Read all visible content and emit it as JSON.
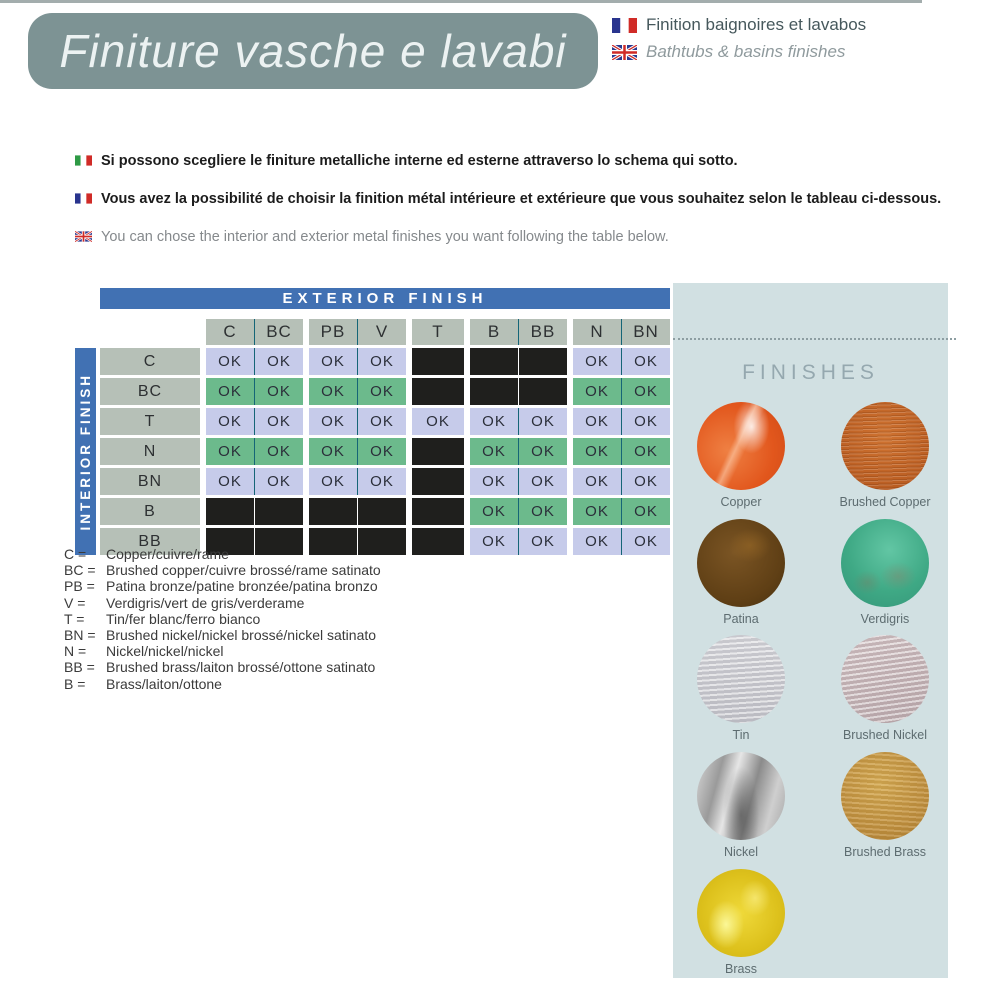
{
  "colors": {
    "blue": "#4171b3",
    "sage": "#b6c0b7",
    "lav": "#c6cbea",
    "grn": "#6cba8c",
    "blk": "#1f1f1d",
    "teal": "#156577",
    "panel": "#d1e0e2",
    "titlebox": "#7d9394"
  },
  "header": {
    "title": "Finiture vasche e lavabi",
    "subtitle_fr": "Finition baignoires et lavabos",
    "subtitle_en": "Bathtubs & basins finishes"
  },
  "intro": [
    {
      "lang": "it",
      "icon": "italian-flag-icon",
      "text": "Si possono scegliere le finiture metalliche interne ed esterne attraverso lo schema qui sotto."
    },
    {
      "lang": "fr",
      "icon": "french-flag-icon",
      "text": "Vous avez la possibilité de choisir la finition métal intérieure et extérieure que vous souhaitez selon le tableau ci-dessous."
    },
    {
      "lang": "en",
      "icon": "uk-flag-icon",
      "text": "You can chose the interior and exterior metal finishes you want following the table below."
    }
  ],
  "table": {
    "exterior_label": "EXTERIOR FINISH",
    "interior_label": "INTERIOR FINISH",
    "column_groups": [
      [
        "C",
        "BC"
      ],
      [
        "PB",
        "V"
      ],
      [
        "T"
      ],
      [
        "B",
        "BB"
      ],
      [
        "N",
        "BN"
      ]
    ],
    "ok_label": "OK",
    "rows": [
      {
        "label": "C",
        "scheme": "lavender",
        "cells": [
          "OK",
          "OK",
          "OK",
          "OK",
          "",
          "",
          "",
          "OK",
          "OK"
        ]
      },
      {
        "label": "BC",
        "scheme": "green",
        "cells": [
          "OK",
          "OK",
          "OK",
          "OK",
          "",
          "",
          "",
          "OK",
          "OK"
        ]
      },
      {
        "label": "T",
        "scheme": "lavender",
        "cells": [
          "OK",
          "OK",
          "OK",
          "OK",
          "OK",
          "OK",
          "OK",
          "OK",
          "OK"
        ]
      },
      {
        "label": "N",
        "scheme": "green",
        "cells": [
          "OK",
          "OK",
          "OK",
          "OK",
          "",
          "OK",
          "OK",
          "OK",
          "OK"
        ]
      },
      {
        "label": "BN",
        "scheme": "lavender",
        "cells": [
          "OK",
          "OK",
          "OK",
          "OK",
          "",
          "OK",
          "OK",
          "OK",
          "OK"
        ]
      },
      {
        "label": "B",
        "scheme": "green",
        "cells": [
          "",
          "",
          "",
          "",
          "",
          "OK",
          "OK",
          "OK",
          "OK"
        ]
      },
      {
        "label": "BB",
        "scheme": "lavender",
        "cells": [
          "",
          "",
          "",
          "",
          "",
          "OK",
          "OK",
          "OK",
          "OK"
        ]
      }
    ]
  },
  "legend": [
    {
      "code": "C =",
      "text": "Copper/cuivre/rame"
    },
    {
      "code": "BC =",
      "text": "Brushed copper/cuivre brossé/rame satinato"
    },
    {
      "code": "PB =",
      "text": "Patina bronze/patine bronzée/patina bronzo"
    },
    {
      "code": "V =",
      "text": "Verdigris/vert de gris/verderame"
    },
    {
      "code": "T =",
      "text": "Tin/fer blanc/ferro bianco"
    },
    {
      "code": "BN =",
      "text": "Brushed nickel/nickel brossé/nickel satinato"
    },
    {
      "code": "N =",
      "text": "Nickel/nickel/nickel"
    },
    {
      "code": "BB =",
      "text": "Brushed brass/laiton brossé/ottone satinato"
    },
    {
      "code": "B =",
      "text": "Brass/laiton/ottone"
    }
  ],
  "finishes_panel": {
    "title": "FINISHES",
    "swatches": [
      {
        "name": "Copper",
        "key": "copper"
      },
      {
        "name": "Brushed Copper",
        "key": "brushed-copper"
      },
      {
        "name": "Patina",
        "key": "patina"
      },
      {
        "name": "Verdigris",
        "key": "verdigris"
      },
      {
        "name": "Tin",
        "key": "tin"
      },
      {
        "name": "Brushed Nickel",
        "key": "brushed-nickel"
      },
      {
        "name": "Nickel",
        "key": "nickel"
      },
      {
        "name": "Brushed Brass",
        "key": "brushed-brass"
      },
      {
        "name": "Brass",
        "key": "brass"
      }
    ]
  }
}
